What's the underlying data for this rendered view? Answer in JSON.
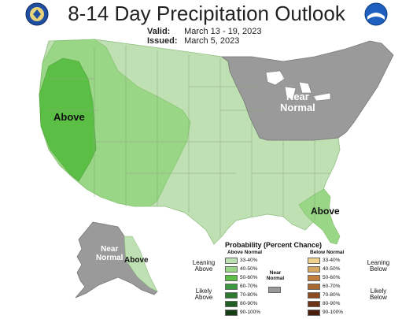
{
  "header": {
    "title": "8-14 Day Precipitation Outlook",
    "valid_label": "Valid:",
    "valid_value": "March 13 - 19, 2023",
    "issued_label": "Issued:",
    "issued_value": "March 5, 2023"
  },
  "logos": {
    "left": "doc-seal-logo",
    "right": "noaa-logo"
  },
  "map_labels": {
    "west": "Above",
    "northeast_line1": "Near",
    "northeast_line2": "Normal",
    "southeast": "Above",
    "alaska_near_line1": "Near",
    "alaska_near_line2": "Normal",
    "alaska_above": "Above"
  },
  "legend": {
    "title": "Probability (Percent Chance)",
    "above_header": "Above Normal",
    "below_header": "Below Normal",
    "leaning_above_1": "Leaning",
    "leaning_above_2": "Above",
    "likely_above_1": "Likely",
    "likely_above_2": "Above",
    "leaning_below_1": "Leaning",
    "leaning_below_2": "Below",
    "likely_below_1": "Likely",
    "likely_below_2": "Below",
    "near_normal_1": "Near",
    "near_normal_2": "Normal",
    "above_rows": [
      {
        "label": "33-40%",
        "color": "#bfe0b2"
      },
      {
        "label": "40-50%",
        "color": "#99d685"
      },
      {
        "label": "50-60%",
        "color": "#5cbf45"
      },
      {
        "label": "60-70%",
        "color": "#3a9a3f"
      },
      {
        "label": "70-80%",
        "color": "#2d7a2f"
      },
      {
        "label": "80-90%",
        "color": "#1f5e22"
      },
      {
        "label": "90-100%",
        "color": "#153d16"
      }
    ],
    "below_rows": [
      {
        "label": "33-40%",
        "color": "#f0d28c"
      },
      {
        "label": "40-50%",
        "color": "#d9a860"
      },
      {
        "label": "50-60%",
        "color": "#c07f3a"
      },
      {
        "label": "60-70%",
        "color": "#a8682f"
      },
      {
        "label": "70-80%",
        "color": "#8c4a20"
      },
      {
        "label": "80-90%",
        "color": "#6e3316"
      },
      {
        "label": "90-100%",
        "color": "#4a1e0d"
      }
    ],
    "near_normal_color": "#999999"
  }
}
